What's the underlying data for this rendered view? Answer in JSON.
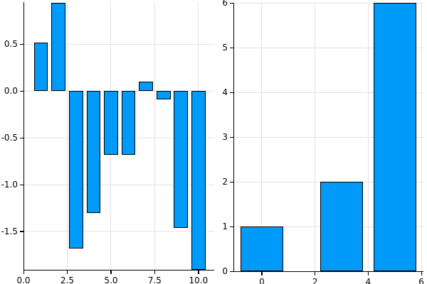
{
  "figure": {
    "background": "#FFFFFF",
    "kind": "two bar-chart subplots, no titles, no legend"
  },
  "colors": {
    "bar_fill": "#009AF9",
    "bar_stroke": "#000000",
    "grid": "#E3E3E3",
    "axis": "#000000",
    "tick_text": "#000000"
  },
  "chart_data": [
    {
      "id": "left",
      "type": "bar",
      "title": "",
      "xlabel": "",
      "ylabel": "",
      "x": [
        1,
        2,
        3,
        4,
        5,
        6,
        7,
        8,
        9,
        10
      ],
      "values": [
        0.52,
        0.94,
        -1.68,
        -1.3,
        -0.68,
        -0.68,
        0.1,
        -0.09,
        -1.46,
        -1.91
      ],
      "bar_width": 0.8,
      "xlim": [
        0,
        10.9
      ],
      "ylim": [
        -1.91,
        0.95
      ],
      "xticks": [
        0,
        2.5,
        5,
        7.5,
        10
      ],
      "xtick_labels": [
        "0.0",
        "2.5",
        "5.0",
        "7.5",
        "10.0"
      ],
      "yticks": [
        0.5,
        0,
        -0.5,
        -1,
        -1.5
      ],
      "ytick_labels": [
        "0.5",
        "0.0",
        "-0.5",
        "-1.0",
        "-1.5"
      ],
      "grid": true,
      "legend": false
    },
    {
      "id": "right",
      "type": "bar",
      "title": "",
      "xlabel": "",
      "ylabel": "",
      "x": [
        0,
        3,
        5
      ],
      "values": [
        1,
        2,
        6
      ],
      "bar_width": 1.6,
      "xlim": [
        -1.07,
        6.08
      ],
      "ylim": [
        0,
        6
      ],
      "xticks": [
        0,
        2,
        4,
        6
      ],
      "xtick_labels": [
        "0",
        "2",
        "4",
        "6"
      ],
      "yticks": [
        0,
        1,
        2,
        3,
        4,
        5,
        6
      ],
      "ytick_labels": [
        "0",
        "1",
        "2",
        "3",
        "4",
        "5",
        "6"
      ],
      "grid": true,
      "legend": false
    }
  ]
}
